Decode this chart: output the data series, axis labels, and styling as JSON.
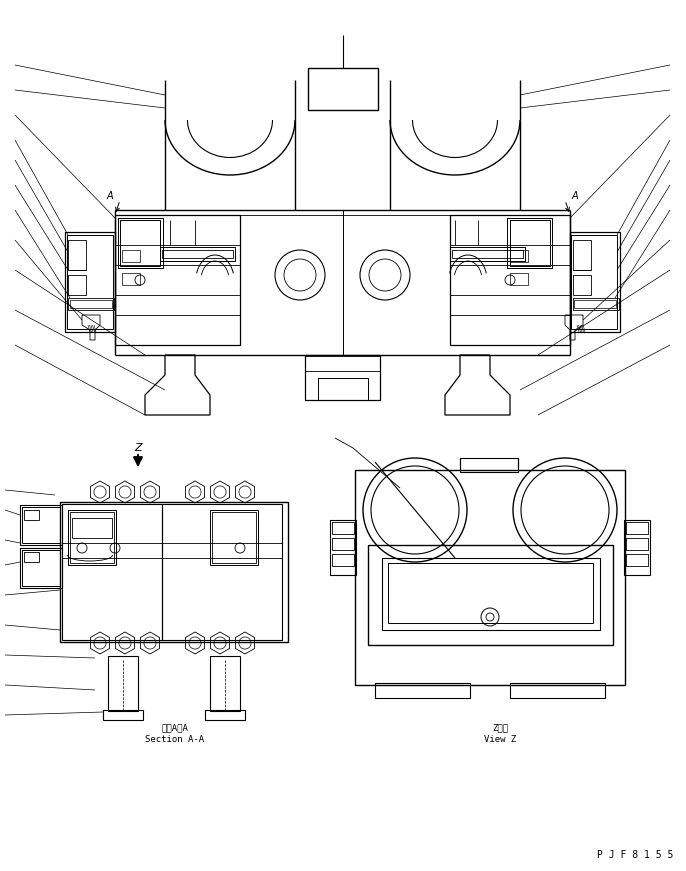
{
  "bg_color": "#ffffff",
  "line_color": "#000000",
  "bottom_text": "P J F 8 1 5 5",
  "section_aa_label1": "断面A－A",
  "section_aa_label2": "Section A-A",
  "view_z_label1": "Z　視",
  "view_z_label2": "View Z",
  "fig_width": 6.86,
  "fig_height": 8.71,
  "dpi": 100
}
